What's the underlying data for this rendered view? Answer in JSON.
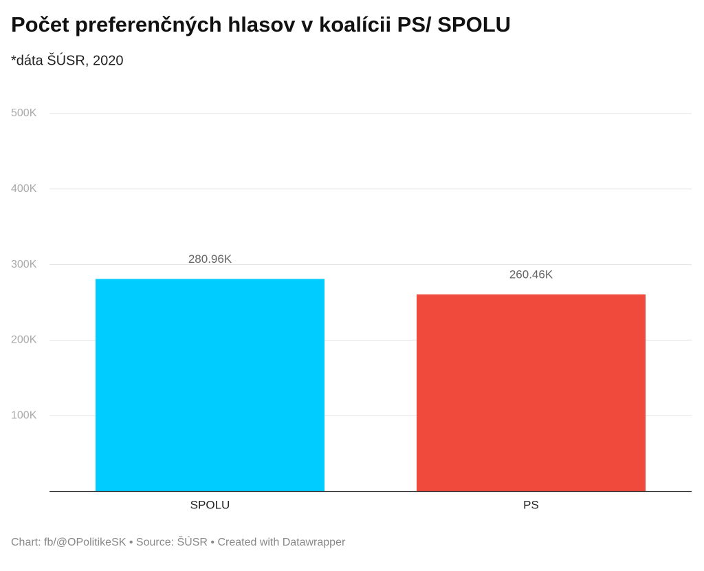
{
  "chart_data": {
    "type": "bar",
    "title": "Počet preferenčných hlasov v koalícii PS/ SPOLU",
    "subtitle": "*dáta ŠÚSR, 2020",
    "categories": [
      "SPOLU",
      "PS"
    ],
    "values": [
      280960,
      260460
    ],
    "value_labels": [
      "280.96K",
      "260.46K"
    ],
    "colors": [
      "#00ccff",
      "#ef4a3c"
    ],
    "ylim": [
      0,
      500000
    ],
    "yticks": [
      {
        "value": 100000,
        "label": "100K"
      },
      {
        "value": 200000,
        "label": "200K"
      },
      {
        "value": 300000,
        "label": "300K"
      },
      {
        "value": 400000,
        "label": "400K"
      },
      {
        "value": 500000,
        "label": "500K"
      }
    ],
    "grid": true,
    "footer": "Chart: fb/@OPolitikeSK • Source: ŠÚSR • Created with Datawrapper"
  }
}
